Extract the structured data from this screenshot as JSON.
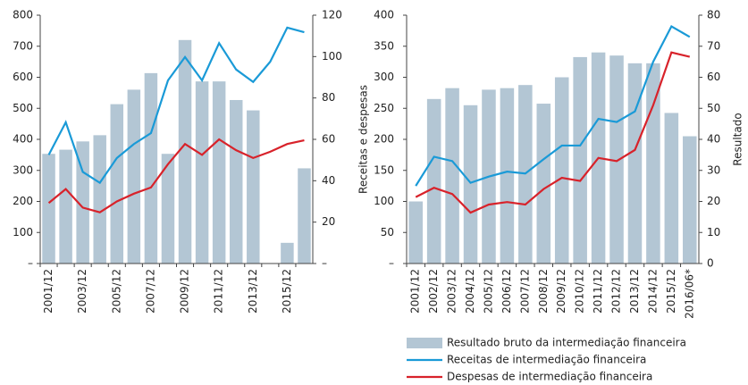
{
  "chart_data": [
    {
      "type": "combo",
      "categories": [
        "2001/12",
        null,
        "2003/12",
        null,
        "2005/12",
        null,
        "2007/12",
        null,
        "2009/12",
        null,
        "2011/12",
        null,
        "2013/12",
        null,
        "2015/12",
        null
      ],
      "series": [
        {
          "type": "bar",
          "axis": "y2",
          "color": "#b3c6d4",
          "values": [
            53,
            55,
            59,
            62,
            77,
            84,
            92,
            53,
            108,
            88,
            88,
            79,
            74,
            0,
            10,
            46
          ]
        },
        {
          "type": "line",
          "color": "#1a9ad7",
          "values": [
            350,
            455,
            295,
            260,
            340,
            385,
            420,
            590,
            665,
            590,
            710,
            625,
            585,
            650,
            760,
            745
          ]
        },
        {
          "type": "line",
          "color": "#d8222a",
          "values": [
            195,
            240,
            180,
            165,
            200,
            225,
            245,
            320,
            385,
            350,
            400,
            365,
            340,
            360,
            385,
            397
          ]
        }
      ],
      "ylim": [
        0,
        800
      ],
      "yticks": [
        {
          "value": 0,
          "label": "–"
        },
        100,
        200,
        300,
        400,
        500,
        600,
        700,
        800
      ],
      "y2lim": [
        0,
        120
      ],
      "y2ticks": [
        {
          "value": 0,
          "label": "–"
        },
        20,
        40,
        60,
        80,
        100,
        120
      ]
    },
    {
      "type": "combo",
      "y_label": "Receitas e despesas",
      "y2_label": "Resultado",
      "categories": [
        "2001/12",
        "2002/12",
        "2003/12",
        "2004/12",
        "2005/12",
        "2006/12",
        "2007/12",
        "2008/12",
        "2009/12",
        "2010/12",
        "2011/12",
        "2012/12",
        "2013/12",
        "2014/12",
        "2015/12",
        "2016/06*"
      ],
      "series": [
        {
          "name": "Resultado bruto da intermediação financeira",
          "type": "bar",
          "axis": "y2",
          "color": "#b3c6d4",
          "values": [
            20,
            53,
            56.5,
            51,
            56,
            56.5,
            57.5,
            51.5,
            60,
            66.5,
            68,
            67,
            64.5,
            64.5,
            48.5,
            41
          ]
        },
        {
          "name": "Receitas de intermediação financeira",
          "type": "line",
          "color": "#1a9ad7",
          "values": [
            125,
            172,
            165,
            130,
            140,
            148,
            145,
            168,
            190,
            190,
            233,
            228,
            245,
            325,
            382,
            365
          ]
        },
        {
          "name": "Despesas de intermediação financeira",
          "type": "line",
          "color": "#d8222a",
          "values": [
            107,
            122,
            112,
            82,
            95,
            99,
            95,
            120,
            138,
            133,
            170,
            165,
            183,
            255,
            340,
            333
          ]
        }
      ],
      "ylim": [
        0,
        400
      ],
      "yticks": [
        {
          "value": 0,
          "label": "–"
        },
        50,
        100,
        150,
        200,
        250,
        300,
        350,
        400
      ],
      "y2lim": [
        0,
        80
      ],
      "y2ticks": [
        0,
        10,
        20,
        30,
        40,
        50,
        60,
        70,
        80
      ],
      "legend": "bottom-right"
    }
  ]
}
